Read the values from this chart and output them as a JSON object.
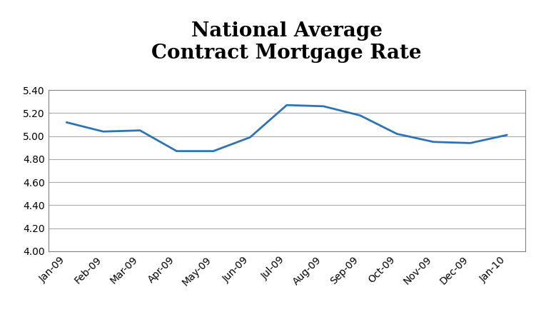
{
  "title": "National Average\nContract Mortgage Rate",
  "x_labels": [
    "Jan-09",
    "Feb-09",
    "Mar-09",
    "Apr-09",
    "May-09",
    "Jun-09",
    "Jul-09",
    "Aug-09",
    "Sep-09",
    "Oct-09",
    "Nov-09",
    "Dec-09",
    "Jan-10"
  ],
  "y_values": [
    5.12,
    5.04,
    5.05,
    4.87,
    4.87,
    4.99,
    5.27,
    5.26,
    5.18,
    5.02,
    4.95,
    4.94,
    5.01
  ],
  "ylim": [
    4.0,
    5.4
  ],
  "yticks": [
    4.0,
    4.2,
    4.4,
    4.6,
    4.8,
    5.0,
    5.2,
    5.4
  ],
  "line_color": "#2E74B5",
  "line_width": 2.0,
  "background_color": "#FFFFFF",
  "title_fontsize": 20,
  "tick_fontsize": 10,
  "grid_color": "#AAAAAA",
  "border_color": "#808080"
}
